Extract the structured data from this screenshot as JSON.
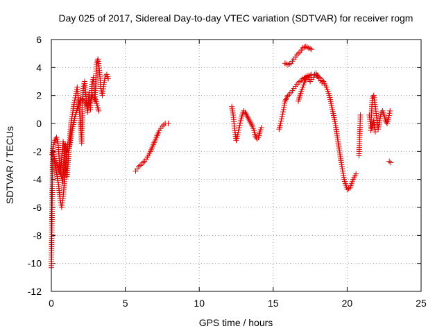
{
  "chart_data": {
    "type": "scatter",
    "title": "Day 025 of 2017, Sidereal Day-to-day VTEC variation (SDTVAR) for receiver rogm",
    "xlabel": "GPS time / hours",
    "ylabel": "SDTVAR / TECUs",
    "xlim": [
      0,
      25
    ],
    "ylim": [
      -12,
      6
    ],
    "xticks": [
      "0",
      "5",
      "10",
      "15",
      "20",
      "25"
    ],
    "yticks": [
      "-12",
      "-10",
      "-8",
      "-6",
      "-4",
      "-2",
      "0",
      "2",
      "4",
      "6"
    ],
    "grid": true,
    "marker": "+",
    "marker_color": "#e00000",
    "series": [
      {
        "name": "SDTVAR",
        "segments": [
          {
            "x": [
              0.0,
              0.1,
              0.2,
              0.3,
              0.4,
              0.5,
              0.6,
              0.7,
              0.8,
              0.9,
              1.0,
              1.1
            ],
            "y": [
              -10.3,
              -1.8,
              -2.5,
              -3.2,
              -3.8,
              -4.5,
              -5.5,
              -6.0,
              -5.2,
              -4.0,
              -2.5,
              -1.5
            ]
          },
          {
            "x": [
              0.05,
              0.15,
              0.25,
              0.35,
              0.45,
              0.55,
              0.65,
              0.75,
              0.85,
              0.95,
              1.05,
              1.15,
              1.25,
              1.35,
              1.45,
              1.55,
              1.65,
              1.75,
              1.85,
              1.95,
              2.05,
              2.15,
              2.25,
              2.35,
              2.45,
              2.55,
              2.65,
              2.75,
              2.85,
              2.95,
              3.05,
              3.15,
              3.25,
              3.35,
              3.45,
              3.55,
              3.65,
              3.75,
              3.85
            ],
            "y": [
              -2.2,
              -1.5,
              -1.2,
              -1.0,
              -1.4,
              -2.8,
              -3.5,
              -4.2,
              -3.0,
              -1.5,
              -3.8,
              -2.5,
              -1.0,
              0.2,
              0.8,
              1.5,
              2.0,
              2.6,
              1.4,
              0.2,
              -1.4,
              2.5,
              3.0,
              1.8,
              0.8,
              2.2,
              1.0,
              2.8,
              3.3,
              1.6,
              4.2,
              4.6,
              3.8,
              2.5,
              2.0,
              2.8,
              3.4,
              3.5,
              3.2
            ]
          },
          {
            "x": [
              0.2,
              0.4,
              0.6,
              0.8,
              1.0,
              1.2,
              1.4,
              1.6,
              1.8,
              2.0,
              2.2,
              2.4,
              2.6,
              2.8,
              3.0,
              3.2
            ],
            "y": [
              -2.6,
              -3.0,
              -3.6,
              -1.3,
              -2.0,
              -1.8,
              -0.5,
              0.5,
              1.2,
              1.8,
              1.6,
              1.3,
              1.5,
              2.0,
              1.7,
              0.9
            ]
          },
          {
            "x": [
              5.7,
              5.9,
              6.1,
              6.3,
              6.5,
              6.7,
              6.9,
              7.1,
              7.3,
              7.5,
              7.7,
              7.9
            ],
            "y": [
              -3.4,
              -3.1,
              -2.9,
              -2.7,
              -2.4,
              -2.0,
              -1.5,
              -1.0,
              -0.5,
              -0.2,
              0.0,
              0.0
            ]
          },
          {
            "x": [
              12.2,
              12.3,
              12.4,
              12.5,
              12.6,
              12.7,
              12.8,
              12.9,
              13.0,
              13.1,
              13.2,
              13.3,
              13.4,
              13.5,
              13.6,
              13.7,
              13.8,
              13.9,
              14.0,
              14.1,
              14.2
            ],
            "y": [
              1.2,
              0.6,
              -0.5,
              -1.2,
              -0.8,
              -0.3,
              0.2,
              0.6,
              0.9,
              0.8,
              0.6,
              0.4,
              0.2,
              0.0,
              -0.2,
              -0.5,
              -0.9,
              -1.1,
              -1.0,
              -0.6,
              -0.3
            ]
          },
          {
            "x": [
              15.4,
              15.5,
              15.6,
              15.7,
              15.8,
              15.9,
              16.0,
              16.2,
              16.4,
              16.6,
              16.8,
              17.0,
              17.2,
              17.4,
              17.6,
              17.8,
              18.0,
              18.2,
              18.4,
              18.6,
              18.8,
              19.0,
              19.2,
              19.4,
              19.6,
              19.8,
              20.0,
              20.2,
              20.4,
              20.6
            ],
            "y": [
              -0.4,
              0.0,
              0.5,
              1.0,
              1.6,
              1.8,
              2.0,
              2.2,
              2.5,
              2.8,
              3.0,
              3.2,
              3.3,
              3.4,
              3.5,
              3.5,
              3.4,
              3.2,
              3.0,
              2.6,
              2.0,
              1.0,
              0.0,
              -1.4,
              -2.8,
              -4.0,
              -4.7,
              -4.6,
              -4.0,
              -3.6
            ]
          },
          {
            "x": [
              15.8,
              16.0,
              16.2,
              16.4,
              16.6,
              16.8,
              17.0,
              17.2,
              17.4,
              17.6
            ],
            "y": [
              4.3,
              4.2,
              4.3,
              4.6,
              4.9,
              5.1,
              5.4,
              5.5,
              5.4,
              5.3
            ]
          },
          {
            "x": [
              16.7,
              16.9,
              17.1,
              17.3,
              17.5,
              17.7,
              17.9,
              18.1,
              18.3
            ],
            "y": [
              1.6,
              2.3,
              2.9,
              3.4,
              3.0,
              3.3,
              3.6,
              3.2,
              2.9
            ]
          },
          {
            "x": [
              20.8,
              20.9
            ],
            "y": [
              -2.3,
              0.6
            ]
          },
          {
            "x": [
              21.5,
              21.6,
              21.7,
              21.8,
              21.9,
              22.0,
              22.1,
              22.2,
              22.3,
              22.4,
              22.5,
              22.6,
              22.7,
              22.8,
              22.9
            ],
            "y": [
              0.6,
              -0.3,
              1.8,
              2.0,
              1.2,
              0.4,
              -0.4,
              0.2,
              0.8,
              0.9,
              0.6,
              0.2,
              0.0,
              0.4,
              0.9
            ]
          },
          {
            "x": [
              21.6,
              21.7,
              21.8,
              21.9
            ],
            "y": [
              -0.5,
              -0.2,
              0.2,
              -0.6
            ]
          },
          {
            "x": [
              22.85,
              22.95
            ],
            "y": [
              -2.7,
              -2.8
            ]
          }
        ]
      }
    ]
  }
}
